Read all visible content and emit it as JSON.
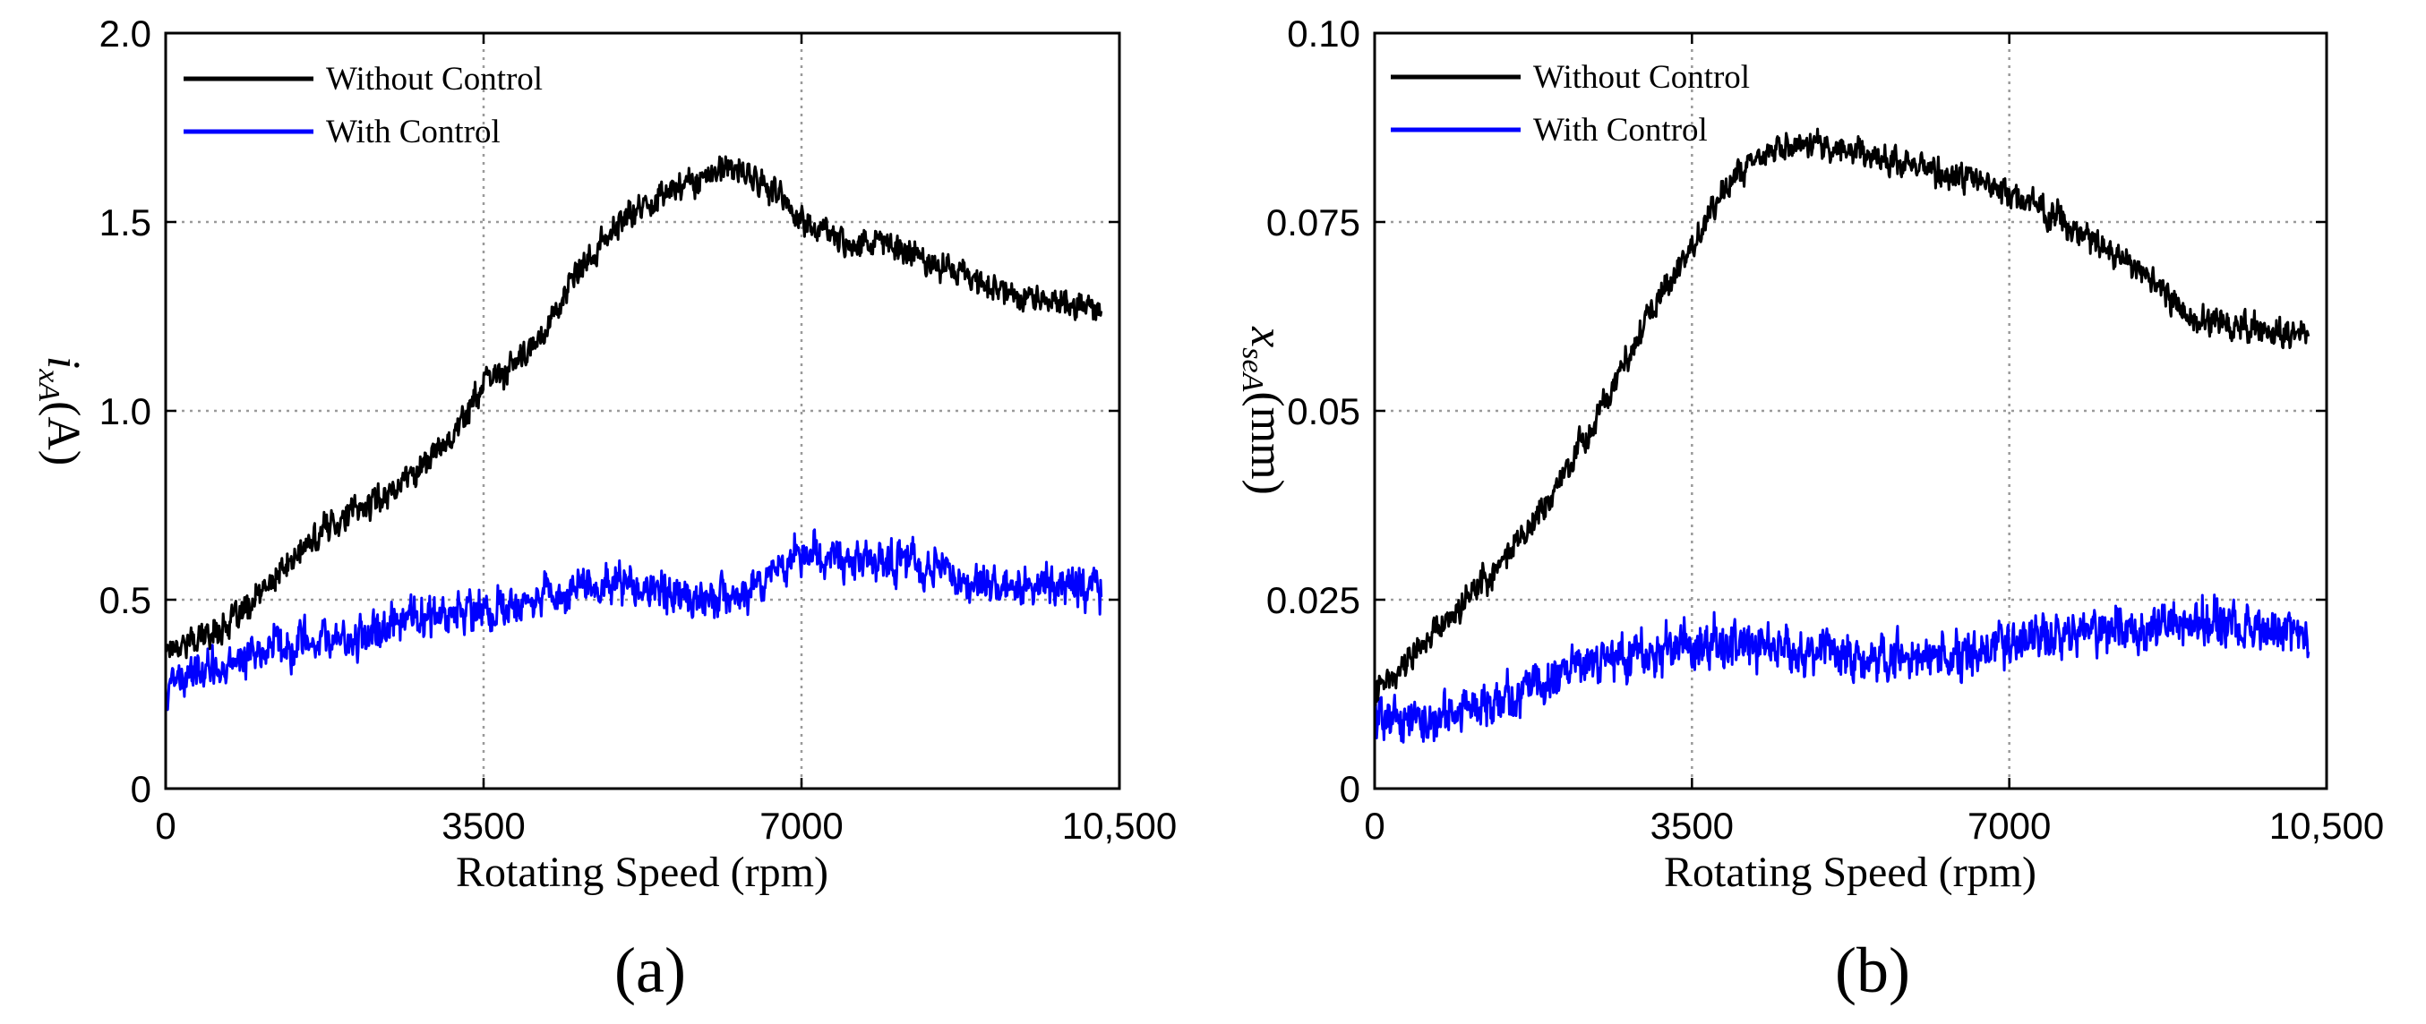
{
  "chart_data": [
    {
      "type": "line",
      "panel_label": "(a)",
      "xlabel": "Rotating Speed (rpm)",
      "ylabel_symbol": "i",
      "ylabel_subscript": "xA",
      "ylabel_unit": "(A)",
      "xlim": [
        0,
        10500
      ],
      "ylim": [
        0,
        2.0
      ],
      "x_ticks": [
        0,
        3500,
        7000,
        10500
      ],
      "x_tick_labels": [
        "0",
        "3500",
        "7000",
        "10,500"
      ],
      "y_ticks": [
        0,
        0.5,
        1.0,
        1.5,
        2.0
      ],
      "y_tick_labels": [
        "0",
        "0.5",
        "1.0",
        "1.5",
        "2.0"
      ],
      "grid": true,
      "legend_position": "top-left",
      "x_end": 10300,
      "noise": [
        0.05,
        0.07
      ],
      "series": [
        {
          "name": "Without Control",
          "color": "#000000",
          "x": [
            0,
            300,
            800,
            1300,
            1800,
            2300,
            2800,
            3200,
            3500,
            4000,
            4500,
            5000,
            5500,
            6000,
            6300,
            6700,
            7000,
            7500,
            8000,
            8500,
            9000,
            9500,
            10300
          ],
          "y": [
            0.38,
            0.39,
            0.45,
            0.58,
            0.7,
            0.76,
            0.85,
            0.95,
            1.07,
            1.15,
            1.35,
            1.5,
            1.58,
            1.63,
            1.64,
            1.58,
            1.5,
            1.45,
            1.44,
            1.39,
            1.34,
            1.3,
            1.27
          ]
        },
        {
          "name": "With Control",
          "color": "#0000ff",
          "x": [
            0,
            500,
            1000,
            2000,
            3000,
            3500,
            4500,
            5000,
            6000,
            6500,
            7000,
            7500,
            8000,
            9000,
            10300
          ],
          "y": [
            0.27,
            0.32,
            0.36,
            0.4,
            0.46,
            0.47,
            0.53,
            0.54,
            0.5,
            0.54,
            0.62,
            0.61,
            0.6,
            0.55,
            0.53
          ]
        }
      ]
    },
    {
      "type": "line",
      "panel_label": "(b)",
      "xlabel": "Rotating Speed (rpm)",
      "ylabel_symbol": "x",
      "ylabel_subscript": "seA",
      "ylabel_unit": "(mm)",
      "xlim": [
        0,
        10500
      ],
      "ylim": [
        0,
        0.1
      ],
      "x_ticks": [
        0,
        3500,
        7000,
        10500
      ],
      "x_tick_labels": [
        "0",
        "3500",
        "7000",
        "10,500"
      ],
      "y_ticks": [
        0,
        0.025,
        0.05,
        0.075,
        0.1
      ],
      "y_tick_labels": [
        "0",
        "0.025",
        "0.05",
        "0.075",
        "0.10"
      ],
      "grid": true,
      "legend_position": "top-left",
      "x_end": 10300,
      "noise": [
        0.0025,
        0.004
      ],
      "series": [
        {
          "name": "Without Control",
          "color": "#000000",
          "x": [
            0,
            500,
            1000,
            1500,
            2000,
            2500,
            3000,
            3500,
            4000,
            4500,
            5000,
            5500,
            6000,
            6500,
            7000,
            7500,
            8000,
            8500,
            9000,
            9500,
            10300
          ],
          "y": [
            0.013,
            0.019,
            0.025,
            0.031,
            0.04,
            0.05,
            0.062,
            0.072,
            0.082,
            0.085,
            0.085,
            0.084,
            0.082,
            0.081,
            0.079,
            0.076,
            0.072,
            0.068,
            0.062,
            0.061,
            0.06
          ]
        },
        {
          "name": "With Control",
          "color": "#0000ff",
          "x": [
            0,
            500,
            1000,
            1500,
            2000,
            2500,
            3000,
            3500,
            4000,
            5000,
            6000,
            7000,
            8000,
            9000,
            10300
          ],
          "y": [
            0.01,
            0.009,
            0.011,
            0.013,
            0.015,
            0.017,
            0.018,
            0.019,
            0.019,
            0.018,
            0.017,
            0.019,
            0.021,
            0.022,
            0.021
          ]
        }
      ]
    }
  ]
}
